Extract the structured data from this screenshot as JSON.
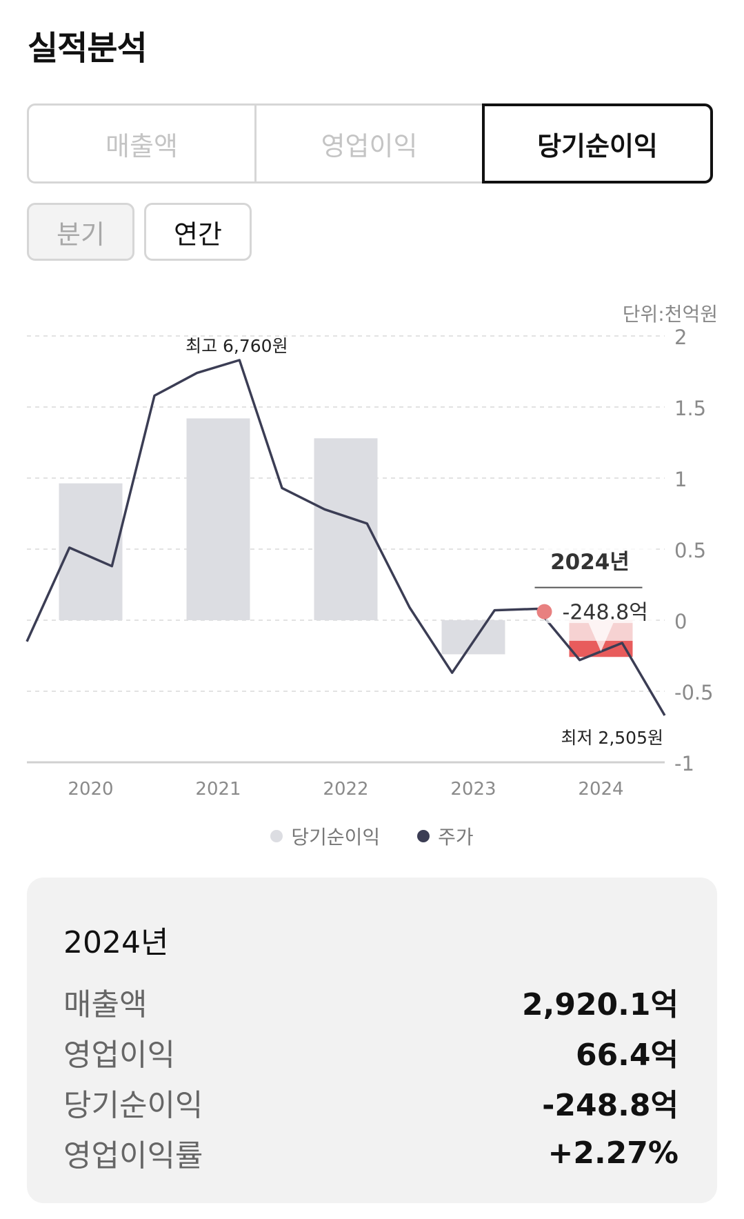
{
  "page_title": "실적분석",
  "metric_tabs": [
    "매출액",
    "영업이익",
    "당기순이익"
  ],
  "active_metric": "당기순이익",
  "period_tabs": [
    "분기",
    "연간"
  ],
  "active_period": "연간",
  "unit_label": "단위:천억원",
  "chart_data": {
    "type": "bar",
    "categories": [
      "2020",
      "2021",
      "2022",
      "2023",
      "2024"
    ],
    "y_axis": {
      "ticks": [
        "2",
        "1.5",
        "1",
        "0.5",
        "0",
        "-0.5",
        "-1"
      ],
      "range": [
        -1,
        2
      ]
    },
    "series": [
      {
        "name": "당기순이익",
        "type": "bar",
        "values": [
          0.963,
          1.42,
          1.28,
          -0.24,
          -0.2488
        ],
        "color": "#dcdde2",
        "highlight_color": "#e85c5c"
      },
      {
        "name": "주가",
        "type": "line",
        "color": "#3b3d54",
        "points_y": [
          -0.15,
          0.51,
          0.38,
          1.58,
          1.74,
          1.83,
          0.93,
          0.78,
          0.68,
          0.09,
          -0.37,
          0.07,
          0.08,
          -0.28,
          -0.16,
          -0.67
        ]
      }
    ],
    "annotations": {
      "max_label": "최고 6,760원",
      "min_label": "최저 2,505원"
    },
    "tooltip": {
      "title": "2024년",
      "value": "-248.8억",
      "dot_color": "#e88080"
    },
    "legend": [
      "당기순이익",
      "주가"
    ]
  },
  "summary": {
    "title": "2024년",
    "rows": [
      {
        "label": "매출액",
        "value": "2,920.1억"
      },
      {
        "label": "영업이익",
        "value": "66.4억"
      },
      {
        "label": "당기순이익",
        "value": "-248.8억"
      },
      {
        "label": "영업이익률",
        "value": "+2.27%"
      }
    ]
  }
}
